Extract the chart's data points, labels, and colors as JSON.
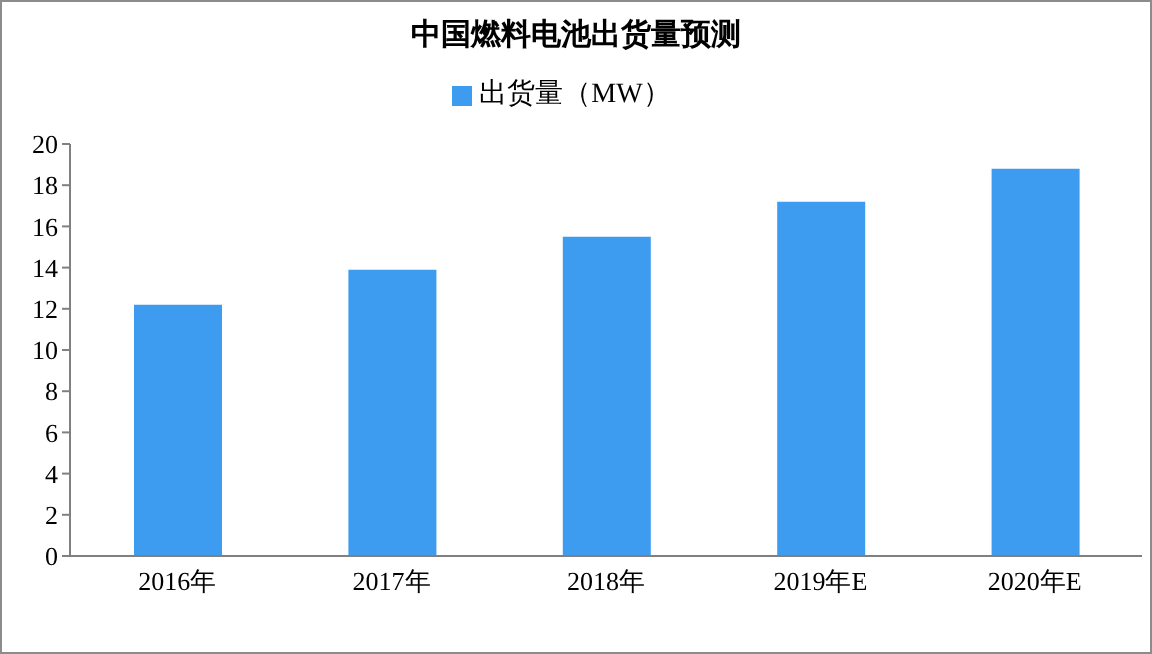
{
  "chart_data": {
    "type": "bar",
    "title": "中国燃料电池出货量预测",
    "categories": [
      "2016年",
      "2017年",
      "2018年",
      "2019年E",
      "2020年E"
    ],
    "series": [
      {
        "name": "出货量（MW）",
        "color": "#3d9cf0",
        "values": [
          12.2,
          13.9,
          15.5,
          17.2,
          18.8
        ]
      }
    ],
    "ylim": [
      0,
      20
    ],
    "yticks": [
      0,
      2,
      4,
      6,
      8,
      10,
      12,
      14,
      16,
      18,
      20
    ],
    "grid": false,
    "legend": "top"
  }
}
